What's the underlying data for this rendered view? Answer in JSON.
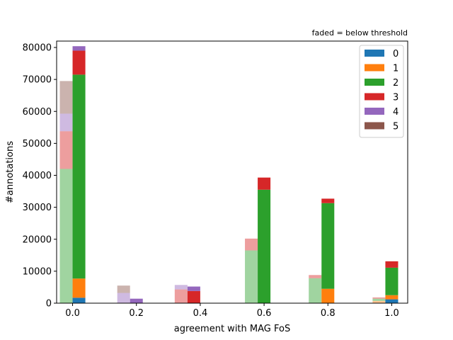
{
  "chart_data": {
    "type": "bar",
    "stacked": true,
    "xlabel": "agreement with MAG FoS",
    "ylabel": "#annotations",
    "annotation": "faded = below threshold",
    "xlim": [
      -0.05,
      1.05
    ],
    "ylim": [
      0,
      82000
    ],
    "xticks": [
      0.0,
      0.2,
      0.4,
      0.6,
      0.8,
      1.0
    ],
    "xtick_labels": [
      "0.0",
      "0.2",
      "0.4",
      "0.6",
      "0.8",
      "1.0"
    ],
    "yticks": [
      0,
      10000,
      20000,
      30000,
      40000,
      50000,
      60000,
      70000,
      80000
    ],
    "ytick_labels": [
      "0",
      "10000",
      "20000",
      "30000",
      "40000",
      "50000",
      "60000",
      "70000",
      "80000"
    ],
    "legend": {
      "position": "top-right",
      "entries": [
        "0",
        "1",
        "2",
        "3",
        "4",
        "5"
      ]
    },
    "colors": [
      "#1f77b4",
      "#ff7f0e",
      "#2ca02c",
      "#d62728",
      "#9467bd",
      "#8c564b"
    ],
    "bar_width": 0.04,
    "groups": [
      {
        "faded_x": -0.02,
        "faded": [
          0,
          0,
          42000,
          11800,
          5500,
          10200
        ],
        "solid_x": 0.02,
        "solid": [
          1700,
          6000,
          63800,
          7500,
          1400,
          0
        ]
      },
      {
        "faded_x": 0.16,
        "faded": [
          0,
          0,
          0,
          0,
          3200,
          2300
        ],
        "solid_x": 0.2,
        "solid": [
          0,
          0,
          0,
          0,
          1400,
          0
        ]
      },
      {
        "faded_x": 0.34,
        "faded": [
          0,
          0,
          0,
          4300,
          1400,
          0
        ],
        "solid_x": 0.38,
        "solid": [
          0,
          0,
          0,
          3800,
          1400,
          0
        ]
      },
      {
        "faded_x": 0.56,
        "faded": [
          0,
          0,
          16500,
          3700,
          0,
          0
        ],
        "solid_x": 0.6,
        "solid": [
          0,
          0,
          35500,
          3800,
          0,
          0
        ]
      },
      {
        "faded_x": 0.76,
        "faded": [
          0,
          0,
          7800,
          1000,
          0,
          0
        ],
        "solid_x": 0.8,
        "solid": [
          0,
          4500,
          26800,
          1400,
          0,
          0
        ]
      },
      {
        "faded_x": 0.96,
        "faded": [
          0,
          700,
          700,
          400,
          0,
          0
        ],
        "solid_x": 1.0,
        "solid": [
          1200,
          1300,
          8600,
          2000,
          0,
          0
        ]
      }
    ]
  }
}
